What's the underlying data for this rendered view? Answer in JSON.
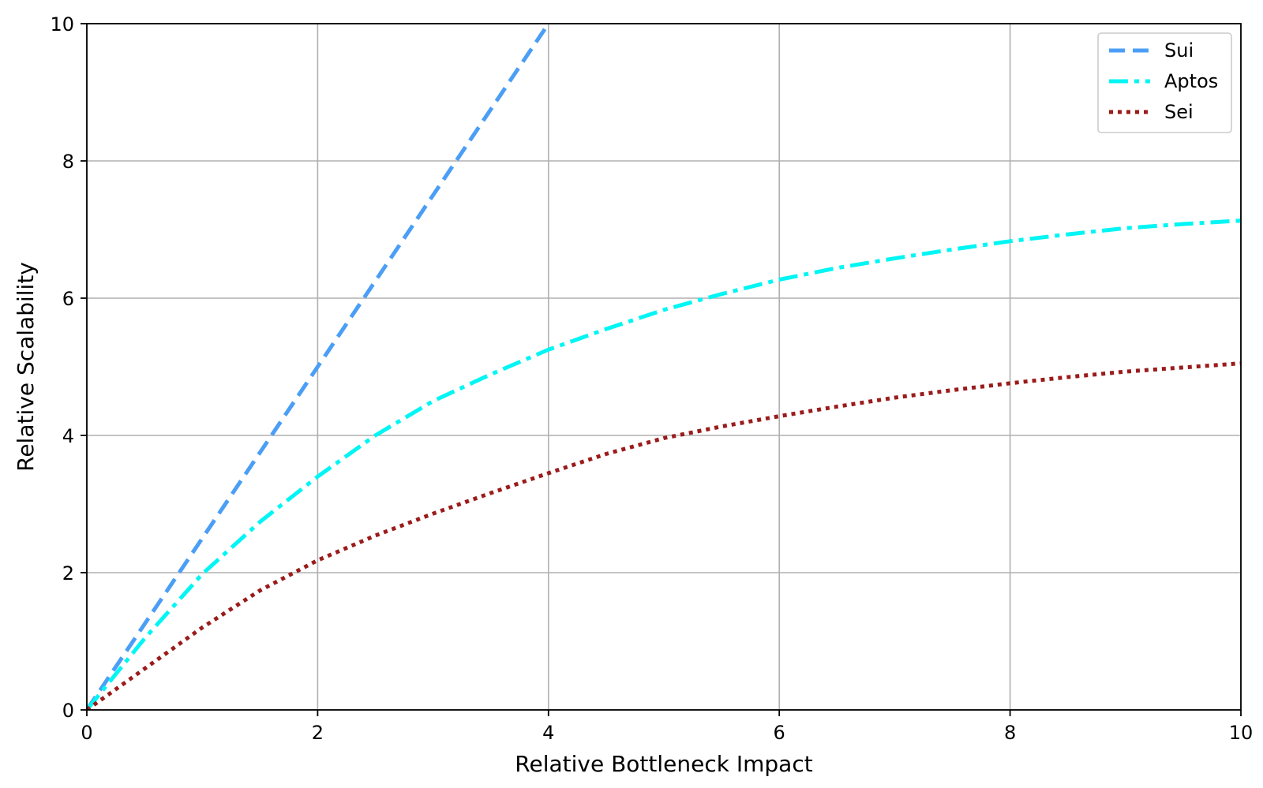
{
  "chart_data": {
    "type": "line",
    "title": "",
    "xlabel": "Relative Bottleneck Impact",
    "ylabel": "Relative Scalability",
    "xlim": [
      0,
      10
    ],
    "ylim": [
      0,
      10
    ],
    "xticks": [
      0,
      2,
      4,
      6,
      8,
      10
    ],
    "yticks": [
      0,
      2,
      4,
      6,
      8,
      10
    ],
    "xtick_labels": [
      "0",
      "2",
      "4",
      "6",
      "8",
      "10"
    ],
    "ytick_labels": [
      "0",
      "2",
      "4",
      "6",
      "8",
      "10"
    ],
    "grid": true,
    "legend_position": "top-right",
    "series": [
      {
        "name": "Sui",
        "color": "#4b9ef5",
        "style": "dashed",
        "x": [
          0,
          0.5,
          1,
          1.5,
          2,
          2.5,
          3,
          3.5,
          4
        ],
        "y": [
          0,
          1.25,
          2.5,
          3.75,
          5.0,
          6.25,
          7.5,
          8.75,
          10.0
        ]
      },
      {
        "name": "Aptos",
        "color": "#00f5f5",
        "style": "dashdot",
        "x": [
          0,
          0.5,
          1,
          1.5,
          2,
          2.5,
          3,
          3.5,
          4,
          4.5,
          5,
          5.5,
          6,
          6.5,
          7,
          7.5,
          8,
          8.5,
          9,
          9.5,
          10
        ],
        "y": [
          0,
          1.04,
          1.98,
          2.74,
          3.4,
          4.0,
          4.5,
          4.89,
          5.25,
          5.55,
          5.83,
          6.06,
          6.27,
          6.44,
          6.58,
          6.71,
          6.83,
          6.93,
          7.02,
          7.08,
          7.13
        ]
      },
      {
        "name": "Sei",
        "color": "#9b1b1b",
        "style": "dotted",
        "x": [
          0,
          0.5,
          1,
          1.5,
          2,
          2.5,
          3,
          3.5,
          4,
          4.5,
          5,
          5.5,
          6,
          6.5,
          7,
          7.5,
          8,
          8.5,
          9,
          9.5,
          10
        ],
        "y": [
          0,
          0.6,
          1.2,
          1.74,
          2.18,
          2.54,
          2.86,
          3.16,
          3.45,
          3.73,
          3.96,
          4.13,
          4.28,
          4.42,
          4.55,
          4.66,
          4.76,
          4.85,
          4.93,
          4.99,
          5.05
        ]
      }
    ]
  }
}
